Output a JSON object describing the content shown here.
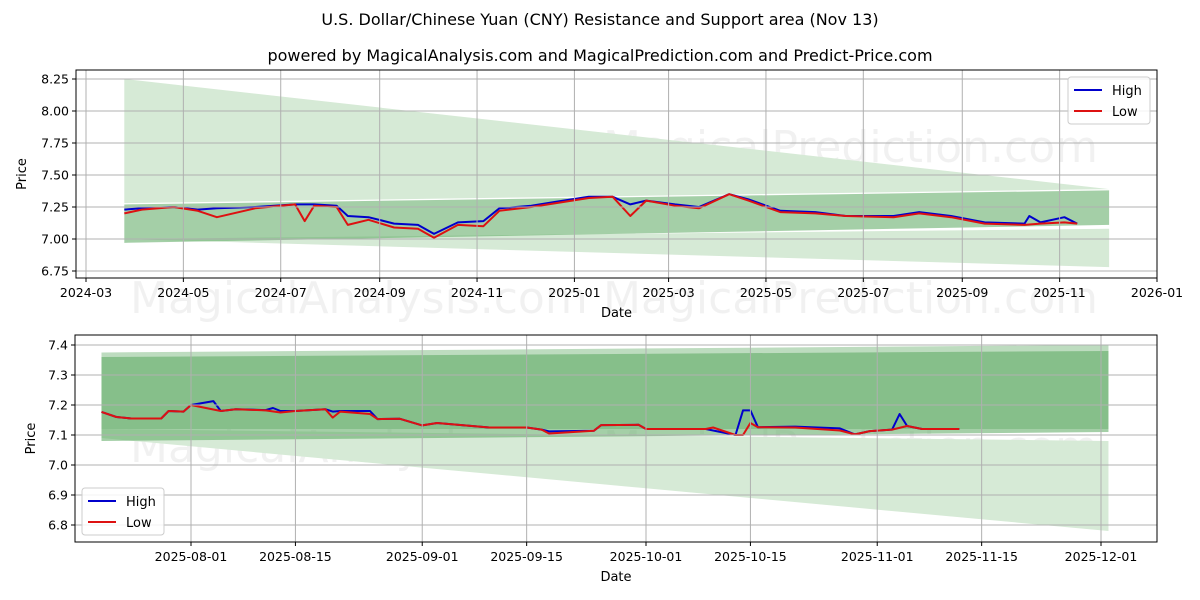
{
  "header": {
    "title": "U.S. Dollar/Chinese Yuan (CNY) Resistance and Support area (Nov 13)",
    "subtitle": "powered by MagicalAnalysis.com and MagicalPrediction.com and Predict-Price.com"
  },
  "watermarks": [
    "MagicalAnalysis.com",
    "MagicalPrediction.com"
  ],
  "colors": {
    "high": "#0000cc",
    "low": "#dd1111",
    "band_dark": "#7dbb80",
    "band_light": "#d6ead6",
    "grid": "#b0b0b0"
  },
  "chart_data": [
    {
      "type": "line",
      "title": "Full history",
      "xlabel": "Date",
      "ylabel": "Price",
      "ylim": [
        6.7,
        8.32
      ],
      "xlim": [
        "2024-02-25",
        "2026-01-01"
      ],
      "grid": true,
      "legend_position": "upper right",
      "x_ticks": [
        "2024-03",
        "2024-05",
        "2024-07",
        "2024-09",
        "2024-11",
        "2025-01",
        "2025-03",
        "2025-05",
        "2025-07",
        "2025-09",
        "2025-11",
        "2026-01"
      ],
      "y_ticks": [
        "6.75",
        "7.00",
        "7.25",
        "7.50",
        "7.75",
        "8.00",
        "8.25"
      ],
      "legend": [
        "High",
        "Low"
      ],
      "bands": [
        {
          "name": "resistance-wide",
          "x": [
            "2024-03-25",
            "2025-12-02"
          ],
          "top": [
            8.25,
            7.39
          ],
          "bottom": [
            7.28,
            7.39
          ]
        },
        {
          "name": "support-wide",
          "x": [
            "2024-03-25",
            "2025-12-02"
          ],
          "top": [
            7.0,
            7.08
          ],
          "bottom": [
            7.0,
            6.78
          ]
        },
        {
          "name": "main-channel",
          "x": [
            "2024-03-25",
            "2025-12-02"
          ],
          "top": [
            7.27,
            7.38
          ],
          "bottom": [
            6.97,
            7.11
          ]
        }
      ],
      "series": [
        {
          "name": "High",
          "x": [
            "2024-03-25",
            "2024-04-05",
            "2024-04-25",
            "2024-05-10",
            "2024-05-22",
            "2024-06-15",
            "2024-07-10",
            "2024-07-22",
            "2024-08-05",
            "2024-08-12",
            "2024-08-25",
            "2024-09-10",
            "2024-09-25",
            "2024-10-05",
            "2024-10-20",
            "2024-11-05",
            "2024-11-15",
            "2024-12-05",
            "2024-12-20",
            "2025-01-10",
            "2025-01-25",
            "2025-02-05",
            "2025-02-15",
            "2025-03-05",
            "2025-03-20",
            "2025-04-08",
            "2025-04-20",
            "2025-05-10",
            "2025-06-01",
            "2025-06-20",
            "2025-07-20",
            "2025-08-05",
            "2025-08-25",
            "2025-09-15",
            "2025-10-10",
            "2025-10-13",
            "2025-10-20",
            "2025-11-04",
            "2025-11-12"
          ],
          "values": [
            7.23,
            7.24,
            7.25,
            7.23,
            7.24,
            7.25,
            7.27,
            7.27,
            7.26,
            7.18,
            7.17,
            7.12,
            7.11,
            7.04,
            7.13,
            7.14,
            7.24,
            7.26,
            7.29,
            7.33,
            7.33,
            7.27,
            7.3,
            7.27,
            7.25,
            7.35,
            7.31,
            7.22,
            7.21,
            7.18,
            7.18,
            7.21,
            7.18,
            7.13,
            7.12,
            7.18,
            7.13,
            7.17,
            7.12
          ]
        },
        {
          "name": "Low",
          "x": [
            "2024-03-25",
            "2024-04-05",
            "2024-04-25",
            "2024-05-10",
            "2024-05-22",
            "2024-06-15",
            "2024-07-10",
            "2024-07-16",
            "2024-07-22",
            "2024-08-05",
            "2024-08-12",
            "2024-08-25",
            "2024-09-10",
            "2024-09-25",
            "2024-10-05",
            "2024-10-20",
            "2024-11-05",
            "2024-11-15",
            "2024-12-05",
            "2024-12-20",
            "2025-01-10",
            "2025-01-25",
            "2025-02-05",
            "2025-02-15",
            "2025-03-05",
            "2025-03-20",
            "2025-04-08",
            "2025-04-20",
            "2025-05-10",
            "2025-06-01",
            "2025-06-20",
            "2025-07-20",
            "2025-08-05",
            "2025-08-25",
            "2025-09-15",
            "2025-10-10",
            "2025-10-20",
            "2025-11-04",
            "2025-11-12"
          ],
          "values": [
            7.2,
            7.23,
            7.25,
            7.22,
            7.17,
            7.24,
            7.27,
            7.14,
            7.26,
            7.25,
            7.11,
            7.15,
            7.09,
            7.08,
            7.01,
            7.11,
            7.1,
            7.22,
            7.25,
            7.28,
            7.32,
            7.33,
            7.18,
            7.3,
            7.26,
            7.24,
            7.35,
            7.3,
            7.21,
            7.2,
            7.18,
            7.17,
            7.2,
            7.17,
            7.12,
            7.11,
            7.12,
            7.13,
            7.12
          ]
        }
      ]
    },
    {
      "type": "line",
      "title": "Recent detail",
      "xlabel": "Date",
      "ylabel": "Price",
      "ylim": [
        6.74,
        7.43
      ],
      "xlim": [
        "2025-07-13",
        "2025-12-08"
      ],
      "grid": true,
      "legend_position": "lower left",
      "x_ticks": [
        "2025-08-01",
        "2025-08-15",
        "2025-09-01",
        "2025-09-15",
        "2025-10-01",
        "2025-10-15",
        "2025-11-01",
        "2025-11-15",
        "2025-12-01"
      ],
      "y_ticks": [
        "6.8",
        "6.9",
        "7.0",
        "7.1",
        "7.2",
        "7.3",
        "7.4"
      ],
      "legend": [
        "High",
        "Low"
      ],
      "bands": [
        {
          "name": "resistance-wide",
          "x": [
            "2025-07-20",
            "2025-12-02"
          ],
          "top": [
            7.375,
            7.4
          ],
          "bottom": [
            7.12,
            7.12
          ]
        },
        {
          "name": "support-wide",
          "x": [
            "2025-07-20",
            "2025-12-02"
          ],
          "top": [
            7.12,
            7.08
          ],
          "bottom": [
            7.09,
            6.78
          ]
        },
        {
          "name": "main-channel",
          "x": [
            "2025-07-20",
            "2025-12-02"
          ],
          "top": [
            7.36,
            7.38
          ],
          "bottom": [
            7.08,
            7.11
          ]
        }
      ],
      "series": [
        {
          "name": "High",
          "x": [
            "2025-07-20",
            "2025-07-22",
            "2025-07-24",
            "2025-07-28",
            "2025-07-29",
            "2025-07-31",
            "2025-08-01",
            "2025-08-04",
            "2025-08-05",
            "2025-08-07",
            "2025-08-11",
            "2025-08-12",
            "2025-08-13",
            "2025-08-15",
            "2025-08-19",
            "2025-08-20",
            "2025-08-21",
            "2025-08-25",
            "2025-08-26",
            "2025-08-29",
            "2025-09-01",
            "2025-09-03",
            "2025-09-10",
            "2025-09-15",
            "2025-09-17",
            "2025-09-18",
            "2025-09-24",
            "2025-09-25",
            "2025-09-30",
            "2025-10-01",
            "2025-10-09",
            "2025-10-13",
            "2025-10-14",
            "2025-10-15",
            "2025-10-16",
            "2025-10-21",
            "2025-10-27",
            "2025-10-29",
            "2025-10-31",
            "2025-11-03",
            "2025-11-04",
            "2025-11-05",
            "2025-11-07",
            "2025-11-12"
          ],
          "values": [
            7.177,
            7.16,
            7.155,
            7.155,
            7.18,
            7.178,
            7.2,
            7.213,
            7.18,
            7.186,
            7.183,
            7.19,
            7.18,
            7.18,
            7.186,
            7.178,
            7.18,
            7.18,
            7.153,
            7.154,
            7.132,
            7.14,
            7.125,
            7.125,
            7.118,
            7.112,
            7.114,
            7.133,
            7.134,
            7.12,
            7.12,
            7.1,
            7.182,
            7.182,
            7.126,
            7.128,
            7.122,
            7.102,
            7.113,
            7.118,
            7.17,
            7.13,
            7.12,
            7.12
          ]
        },
        {
          "name": "Low",
          "x": [
            "2025-07-20",
            "2025-07-22",
            "2025-07-24",
            "2025-07-28",
            "2025-07-29",
            "2025-07-31",
            "2025-08-01",
            "2025-08-05",
            "2025-08-07",
            "2025-08-11",
            "2025-08-13",
            "2025-08-15",
            "2025-08-19",
            "2025-08-20",
            "2025-08-21",
            "2025-08-25",
            "2025-08-26",
            "2025-08-29",
            "2025-09-01",
            "2025-09-03",
            "2025-09-10",
            "2025-09-15",
            "2025-09-17",
            "2025-09-18",
            "2025-09-24",
            "2025-09-25",
            "2025-09-30",
            "2025-10-01",
            "2025-10-09",
            "2025-10-10",
            "2025-10-13",
            "2025-10-14",
            "2025-10-15",
            "2025-10-16",
            "2025-10-21",
            "2025-10-27",
            "2025-10-29",
            "2025-10-31",
            "2025-11-03",
            "2025-11-05",
            "2025-11-07",
            "2025-11-12"
          ],
          "values": [
            7.177,
            7.16,
            7.155,
            7.155,
            7.18,
            7.178,
            7.2,
            7.18,
            7.186,
            7.182,
            7.175,
            7.18,
            7.186,
            7.158,
            7.178,
            7.17,
            7.153,
            7.154,
            7.132,
            7.14,
            7.125,
            7.125,
            7.118,
            7.105,
            7.114,
            7.133,
            7.134,
            7.12,
            7.12,
            7.125,
            7.1,
            7.1,
            7.14,
            7.126,
            7.125,
            7.115,
            7.102,
            7.113,
            7.118,
            7.13,
            7.12,
            7.12
          ]
        }
      ]
    }
  ]
}
